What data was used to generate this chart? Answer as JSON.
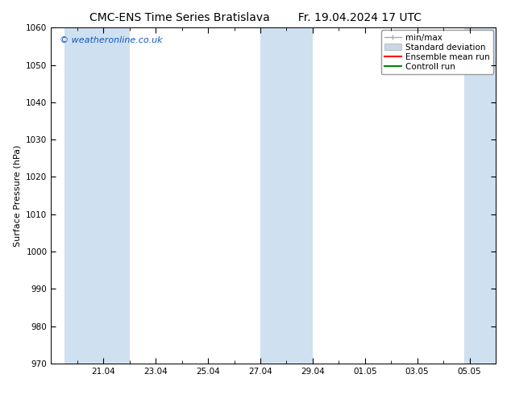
{
  "title_left": "CMC-ENS Time Series Bratislava",
  "title_right": "Fr. 19.04.2024 17 UTC",
  "ylabel": "Surface Pressure (hPa)",
  "ylim": [
    970,
    1060
  ],
  "yticks": [
    970,
    980,
    990,
    1000,
    1010,
    1020,
    1030,
    1040,
    1050,
    1060
  ],
  "x_tick_labels": [
    "21.04",
    "23.04",
    "25.04",
    "27.04",
    "29.04",
    "01.05",
    "03.05",
    "05.05"
  ],
  "watermark": "© weatheronline.co.uk",
  "watermark_color": "#1155bb",
  "bg_color": "#ffffff",
  "plot_bg_color": "#ffffff",
  "shaded_band_color": "#cfe0f0",
  "shaded_band_alpha": 1.0,
  "legend_labels": [
    "min/max",
    "Standard deviation",
    "Ensemble mean run",
    "Controll run"
  ],
  "legend_colors": [
    "#aaaaaa",
    "#bbccdd",
    "#ff0000",
    "#008800"
  ],
  "font_size_title": 10,
  "font_size_axis": 8,
  "font_size_tick": 7.5,
  "font_size_legend": 7.5,
  "font_size_watermark": 8
}
